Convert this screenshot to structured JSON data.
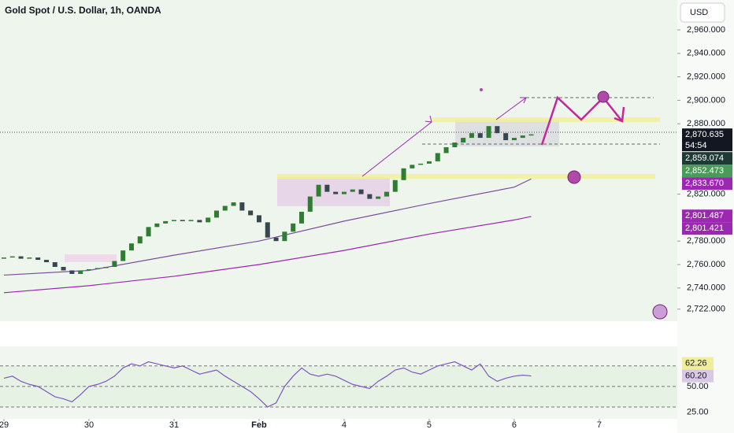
{
  "chart_data": {
    "type": "candlestick",
    "title": "Gold Spot / U.S. Dollar, 1h, OANDA",
    "currency": "USD",
    "countdown": "54:54",
    "x": [
      0,
      0.1,
      0.2,
      0.3,
      0.4,
      0.5,
      0.6,
      0.7,
      0.8,
      0.9,
      1,
      1.1,
      1.2,
      1.3,
      1.4,
      1.5,
      1.6,
      1.7,
      1.8,
      1.9,
      2,
      2.1,
      2.2,
      2.3,
      2.4,
      2.5,
      2.6,
      2.7,
      2.8,
      2.9,
      3,
      3.1,
      3.2,
      3.3,
      3.4,
      3.5,
      3.6,
      3.7,
      3.8,
      3.9,
      4,
      4.1,
      4.2,
      4.3,
      4.4,
      4.5,
      4.6,
      4.7,
      4.8,
      4.9,
      5,
      5.1,
      5.2,
      5.3,
      5.4,
      5.5,
      5.6,
      5.7,
      5.8,
      5.9,
      6,
      6.1,
      6.2
    ],
    "close": [
      2766,
      2767,
      2765,
      2766,
      2764,
      2762,
      2758,
      2755,
      2752,
      2755,
      2756,
      2757,
      2758,
      2763,
      2772,
      2778,
      2784,
      2792,
      2795,
      2797,
      2798,
      2797,
      2798,
      2796,
      2800,
      2806,
      2810,
      2813,
      2806,
      2802,
      2796,
      2783,
      2780,
      2788,
      2795,
      2805,
      2818,
      2828,
      2822,
      2820,
      2822,
      2824,
      2820,
      2816,
      2818,
      2822,
      2832,
      2842,
      2845,
      2846,
      2848,
      2855,
      2860,
      2864,
      2868,
      2872,
      2868,
      2878,
      2872,
      2866,
      2868,
      2870,
      2871
    ],
    "up_color": "#2e7d32",
    "down_color": "#37474f",
    "xlim": [
      -0.046,
      7.917
    ],
    "xticks": [
      {
        "value": 0,
        "label": "29"
      },
      {
        "value": 1,
        "label": "30"
      },
      {
        "value": 2,
        "label": "31"
      },
      {
        "value": 3,
        "label": "Feb"
      },
      {
        "value": 4,
        "label": "4"
      },
      {
        "value": 5,
        "label": "5"
      },
      {
        "value": 6,
        "label": "6"
      },
      {
        "value": 7,
        "label": "7"
      }
    ],
    "ylim": [
      2711.7,
      2985.5
    ],
    "yticks": [
      {
        "value": 2960,
        "label": "2,960.000"
      },
      {
        "value": 2940,
        "label": "2,940.000"
      },
      {
        "value": 2920,
        "label": "2,920.000"
      },
      {
        "value": 2900,
        "label": "2,900.000"
      },
      {
        "value": 2880,
        "label": "2,880.000"
      },
      {
        "value": 2820,
        "label": "2,820.000"
      },
      {
        "value": 2780,
        "label": "2,780.000"
      },
      {
        "value": 2760,
        "label": "2,760.000"
      },
      {
        "value": 2740,
        "label": "2,740.000"
      },
      {
        "value": 2722,
        "label": "2,722.000"
      }
    ],
    "ma": [
      {
        "color": "#9c27b0",
        "x": [
          0,
          1,
          2,
          3,
          4,
          5,
          6,
          6.2
        ],
        "values": [
          2736,
          2742,
          2750,
          2760,
          2772,
          2786,
          2798,
          2801
        ]
      },
      {
        "color": "#7b4f9d",
        "x": [
          0,
          1,
          2,
          3,
          4,
          5,
          6,
          6.2
        ],
        "values": [
          2751,
          2755,
          2768,
          2780,
          2797,
          2812,
          2826,
          2833
        ]
      }
    ],
    "price_labels": [
      {
        "value": 2870.635,
        "label": "2,870.635",
        "color": "#131722"
      },
      {
        "value": 2859.074,
        "label": "2,859.074",
        "color": "#1e3a34"
      },
      {
        "value": 2852.473,
        "label": "2,852.473",
        "color": "#4c9a5a"
      },
      {
        "value": 2833.67,
        "label": "2,833.670",
        "color": "#9c27b0"
      },
      {
        "value": 2801.487,
        "label": "2,801.487",
        "color": "#9c27b0"
      },
      {
        "value": 2801.421,
        "label": "2,801.421",
        "color": "#9c27b0"
      }
    ],
    "rsi": {
      "ylim": [
        20,
        89
      ],
      "yticks": [
        {
          "value": 50,
          "label": "50.00"
        },
        {
          "value": 25,
          "label": "25.00"
        }
      ],
      "levels": [
        70,
        50,
        30
      ],
      "color": "#7e57c2",
      "values": [
        58,
        60,
        55,
        52,
        50,
        45,
        40,
        38,
        35,
        42,
        50,
        52,
        55,
        60,
        68,
        72,
        70,
        74,
        72,
        70,
        68,
        70,
        66,
        62,
        64,
        66,
        60,
        55,
        50,
        45,
        38,
        30,
        34,
        50,
        60,
        68,
        62,
        60,
        62,
        60,
        56,
        52,
        50,
        48,
        55,
        60,
        66,
        68,
        64,
        62,
        66,
        70,
        72,
        74,
        70,
        66,
        72,
        60,
        55,
        58,
        60,
        61,
        60.2
      ],
      "labels": [
        {
          "value": 60.2,
          "label": "60.20",
          "color": "#d9c8e6"
        },
        {
          "value": 62.26,
          "label": "62.26",
          "color": "#f0ee9a"
        }
      ]
    }
  }
}
